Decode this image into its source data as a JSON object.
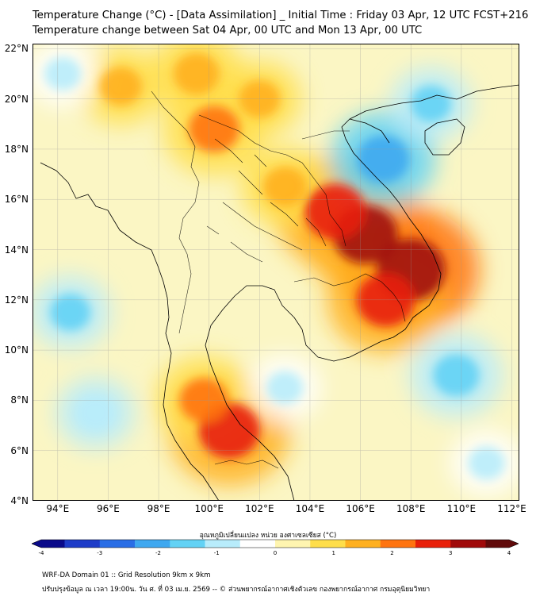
{
  "title_line1": "Temperature Change (°C) - [Data Assimilation] _ Initial Time : Friday 03 Apr, 12 UTC FCST+216",
  "title_line2": "Temperature change between Sat 04 Apr, 00 UTC and Mon 13 Apr, 00 UTC",
  "map": {
    "lon_range": [
      93,
      112.3
    ],
    "lat_range": [
      4,
      22.2
    ],
    "lat_ticks": [
      "22°N",
      "20°N",
      "18°N",
      "16°N",
      "14°N",
      "12°N",
      "10°N",
      "8°N",
      "6°N",
      "4°N"
    ],
    "lon_ticks": [
      "94°E",
      "96°E",
      "98°E",
      "100°E",
      "102°E",
      "104°E",
      "106°E",
      "108°E",
      "110°E",
      "112°E"
    ],
    "grid": true,
    "field_features": [
      {
        "kind": "warm",
        "lon": 106.2,
        "lat": 14.6,
        "value": 3.3
      },
      {
        "kind": "warm",
        "lon": 108.0,
        "lat": 13.2,
        "value": 3.6
      },
      {
        "kind": "warm",
        "lon": 105.0,
        "lat": 15.5,
        "value": 3.0
      },
      {
        "kind": "warm",
        "lon": 107.0,
        "lat": 12.0,
        "value": 2.8
      },
      {
        "kind": "warm",
        "lon": 100.8,
        "lat": 6.8,
        "value": 3.0
      },
      {
        "kind": "warm",
        "lon": 99.8,
        "lat": 8.0,
        "value": 2.0
      },
      {
        "kind": "warm",
        "lon": 100.2,
        "lat": 18.8,
        "value": 2.2
      },
      {
        "kind": "warm",
        "lon": 99.5,
        "lat": 21.0,
        "value": 1.8
      },
      {
        "kind": "warm",
        "lon": 96.5,
        "lat": 20.5,
        "value": 1.5
      },
      {
        "kind": "warm",
        "lon": 103.0,
        "lat": 16.5,
        "value": 1.6
      },
      {
        "kind": "warm",
        "lon": 102.0,
        "lat": 20.0,
        "value": 1.4
      },
      {
        "kind": "cool",
        "lon": 106.9,
        "lat": 17.6,
        "value": -2.3
      },
      {
        "kind": "cool",
        "lon": 109.8,
        "lat": 9.0,
        "value": -1.8
      },
      {
        "kind": "cool",
        "lon": 108.8,
        "lat": 19.8,
        "value": -1.3
      },
      {
        "kind": "cool",
        "lon": 94.5,
        "lat": 11.5,
        "value": -1.3
      },
      {
        "kind": "cool",
        "lon": 95.5,
        "lat": 7.5,
        "value": -1.2
      },
      {
        "kind": "cool",
        "lon": 94.2,
        "lat": 21.0,
        "value": -1.0
      },
      {
        "kind": "cool",
        "lon": 103.0,
        "lat": 8.5,
        "value": -1.0
      },
      {
        "kind": "cool",
        "lon": 111.0,
        "lat": 5.5,
        "value": -1.0
      }
    ]
  },
  "colorbar": {
    "title": "อุณหภูมิเปลี่ยนแปลง หน่วย องศาเซลเซียส (°C)",
    "min": -4,
    "max": 4,
    "ticks": [
      "-4",
      "-3",
      "-2",
      "-1",
      "0",
      "1",
      "2",
      "3",
      "4"
    ],
    "colors": [
      "#0a0a8a",
      "#1e3cc8",
      "#2a6ee6",
      "#3fa8f0",
      "#63d2f5",
      "#b8ecfb",
      "#ffffff",
      "#fff5b0",
      "#ffde4a",
      "#ffb020",
      "#ff7410",
      "#e8200a",
      "#a00a0a",
      "#600a0a"
    ]
  },
  "footer": {
    "line1": "WRF-DA Domain 01 :: Grid Resolution 9km x 9km",
    "line2": "ปรับปรุงข้อมูล ณ เวลา 19:00น. วัน ศ. ที่ 03 เม.ย. 2569 -- © ส่วนพยากรณ์อากาศเชิงตัวเลข กองพยากรณ์อากาศ กรมอุตุนิยมวิทยา"
  }
}
